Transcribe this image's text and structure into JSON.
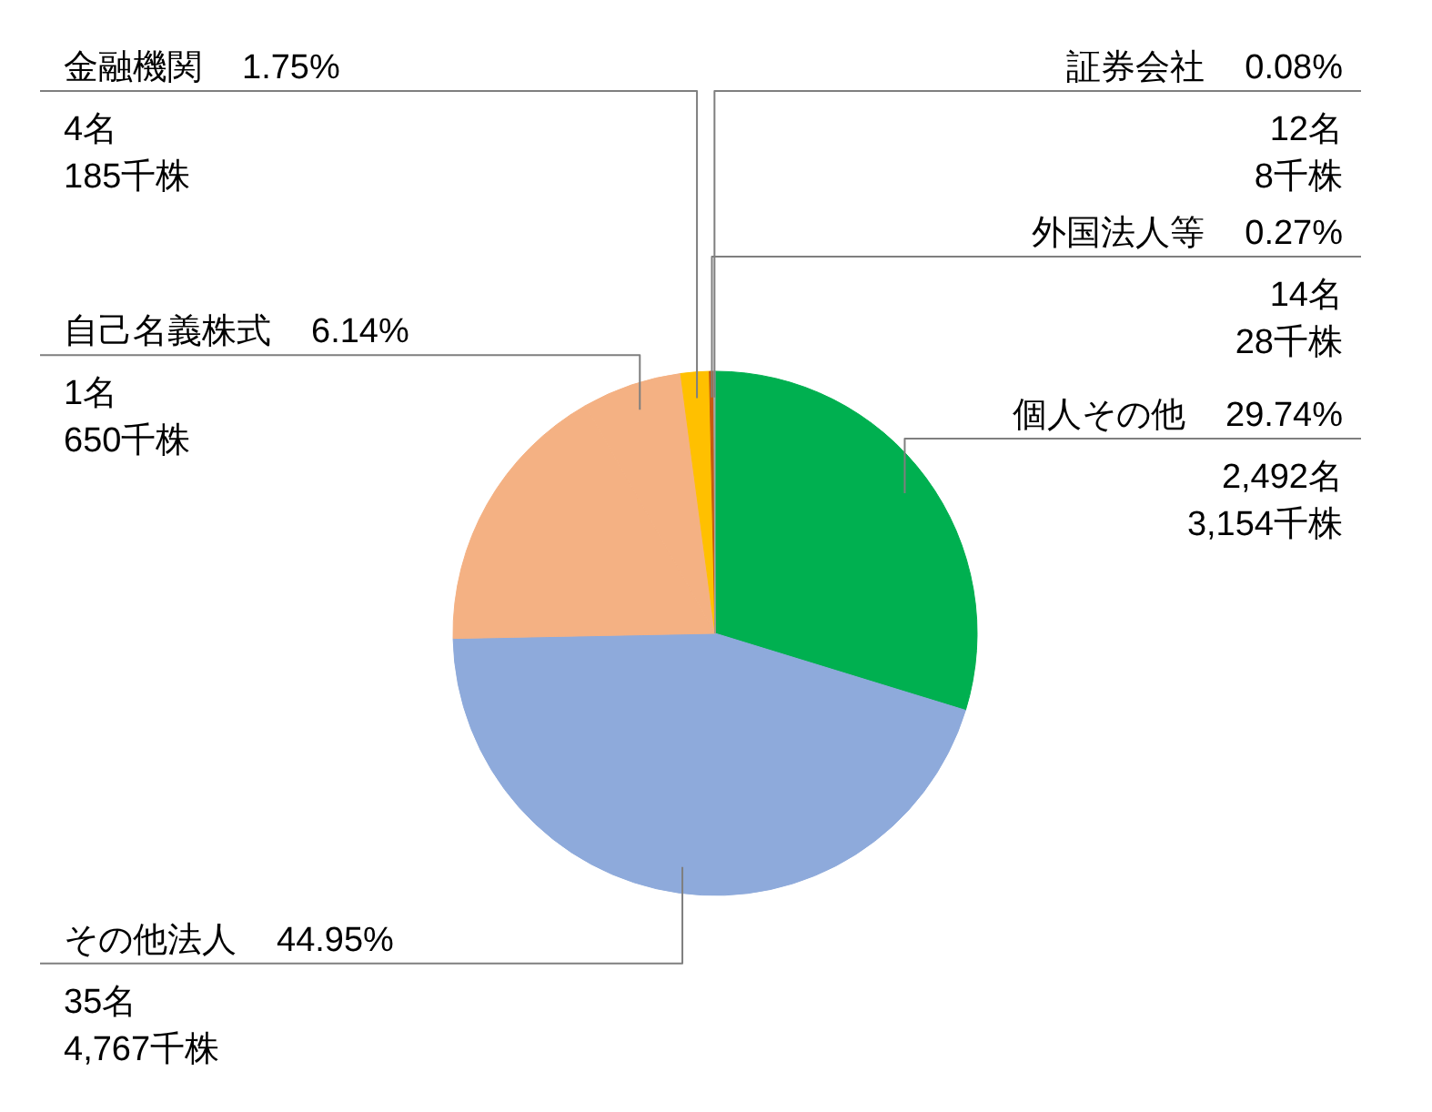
{
  "chart_data": {
    "type": "pie",
    "categories": [
      "個人その他",
      "その他法人",
      null,
      "自己名義株式",
      "金融機関",
      "外国法人等",
      "証券会社"
    ],
    "values": [
      29.74,
      44.95,
      17.07,
      6.14,
      1.75,
      0.27,
      0.08
    ],
    "colors": [
      "#00b050",
      "#8eaadb",
      "#f4b183",
      "#f4b183",
      "#ffc000",
      "#c55a11",
      "#a5a5a5"
    ],
    "value_labels": [
      "29.74%",
      "44.95%",
      null,
      "6.14%",
      "1.75%",
      "0.27%",
      "0.08%"
    ],
    "annotations": [
      {
        "text": "2,492名",
        "x": "個人その他"
      },
      {
        "text": "3,154千株",
        "x": "個人その他"
      },
      {
        "text": "35名",
        "x": "その他法人"
      },
      {
        "text": "4,767千株",
        "x": "その他法人"
      },
      {
        "text": "1名",
        "x": "自己名義株式"
      },
      {
        "text": "650千株",
        "x": "自己名義株式"
      },
      {
        "text": "4名",
        "x": "金融機関"
      },
      {
        "text": "185千株",
        "x": "金融機関"
      },
      {
        "text": "14名",
        "x": "外国法人等"
      },
      {
        "text": "28千株",
        "x": "外国法人等"
      },
      {
        "text": "12名",
        "x": "証券会社"
      },
      {
        "text": "8千株",
        "x": "証券会社"
      }
    ]
  }
}
